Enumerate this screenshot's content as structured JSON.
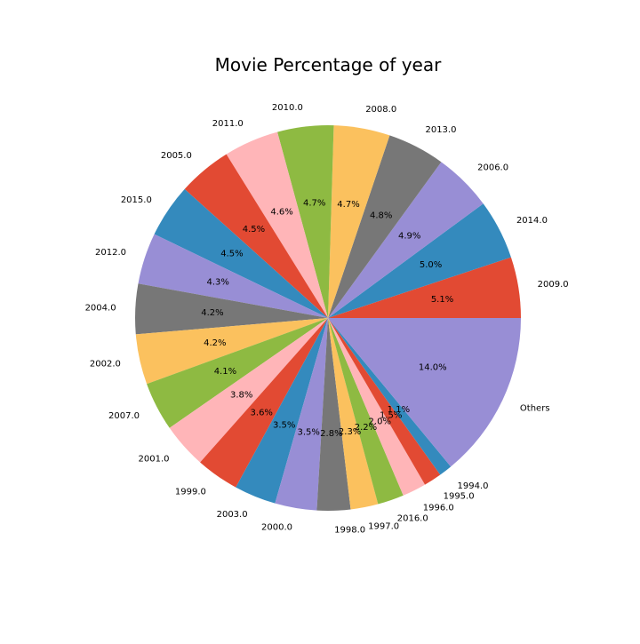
{
  "chart_data": {
    "type": "pie",
    "title": "Movie Percentage of year",
    "start_angle_deg": 0,
    "direction": "counterclockwise",
    "slices": [
      {
        "label": "2009.0",
        "value": 5.1,
        "pct_label": "5.1%",
        "color": "#E24A33"
      },
      {
        "label": "2014.0",
        "value": 5.0,
        "pct_label": "5.0%",
        "color": "#348ABD"
      },
      {
        "label": "2006.0",
        "value": 4.9,
        "pct_label": "4.9%",
        "color": "#988ED5"
      },
      {
        "label": "2013.0",
        "value": 4.8,
        "pct_label": "4.8%",
        "color": "#777777"
      },
      {
        "label": "2008.0",
        "value": 4.7,
        "pct_label": "4.7%",
        "color": "#FBC15E"
      },
      {
        "label": "2010.0",
        "value": 4.7,
        "pct_label": "4.7%",
        "color": "#8EBA42"
      },
      {
        "label": "2011.0",
        "value": 4.6,
        "pct_label": "4.6%",
        "color": "#FFB5B8"
      },
      {
        "label": "2005.0",
        "value": 4.5,
        "pct_label": "4.5%",
        "color": "#E24A33"
      },
      {
        "label": "2015.0",
        "value": 4.5,
        "pct_label": "4.5%",
        "color": "#348ABD"
      },
      {
        "label": "2012.0",
        "value": 4.3,
        "pct_label": "4.3%",
        "color": "#988ED5"
      },
      {
        "label": "2004.0",
        "value": 4.2,
        "pct_label": "4.2%",
        "color": "#777777"
      },
      {
        "label": "2002.0",
        "value": 4.2,
        "pct_label": "4.2%",
        "color": "#FBC15E"
      },
      {
        "label": "2007.0",
        "value": 4.1,
        "pct_label": "4.1%",
        "color": "#8EBA42"
      },
      {
        "label": "2001.0",
        "value": 3.8,
        "pct_label": "3.8%",
        "color": "#FFB5B8"
      },
      {
        "label": "1999.0",
        "value": 3.6,
        "pct_label": "3.6%",
        "color": "#E24A33"
      },
      {
        "label": "2003.0",
        "value": 3.5,
        "pct_label": "3.5%",
        "color": "#348ABD"
      },
      {
        "label": "2000.0",
        "value": 3.5,
        "pct_label": "3.5%",
        "color": "#988ED5"
      },
      {
        "label": "1998.0",
        "value": 2.8,
        "pct_label": "2.8%",
        "color": "#777777"
      },
      {
        "label": "1997.0",
        "value": 2.3,
        "pct_label": "2.3%",
        "color": "#FBC15E"
      },
      {
        "label": "2016.0",
        "value": 2.2,
        "pct_label": "2.2%",
        "color": "#8EBA42"
      },
      {
        "label": "1996.0",
        "value": 2.0,
        "pct_label": "2.0%",
        "color": "#FFB5B8"
      },
      {
        "label": "1995.0",
        "value": 1.5,
        "pct_label": "1.5%",
        "color": "#E24A33"
      },
      {
        "label": "1994.0",
        "value": 1.1,
        "pct_label": "1.1%",
        "color": "#348ABD"
      },
      {
        "label": "Others",
        "value": 14.0,
        "pct_label": "14.0%",
        "color": "#988ED5"
      }
    ]
  }
}
